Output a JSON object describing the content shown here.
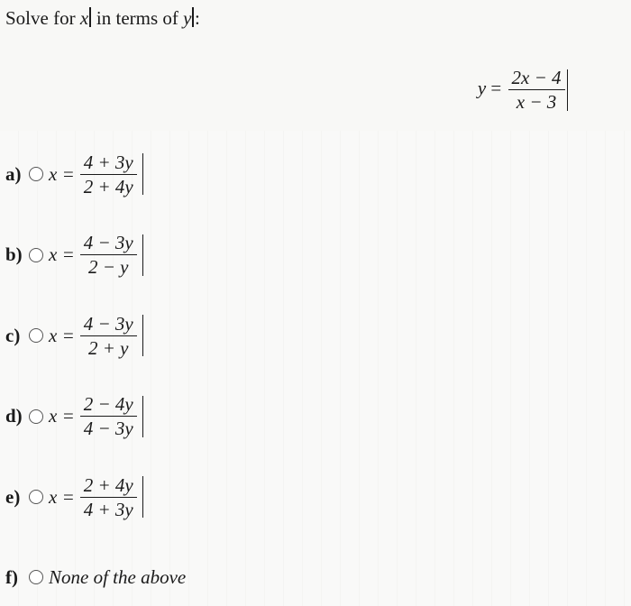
{
  "prompt": {
    "prefix": "Solve for ",
    "var_x": "x",
    "mid": " in terms of ",
    "var_y": "y",
    "suffix": ":"
  },
  "equation": {
    "lhs": "y",
    "eq": " = ",
    "num": "2x − 4",
    "den": "x − 3"
  },
  "options": {
    "a": {
      "letter": "a)",
      "lhs": "x =",
      "num": "4 + 3y",
      "den": "2 + 4y"
    },
    "b": {
      "letter": "b)",
      "lhs": "x =",
      "num": "4 − 3y",
      "den": "2 − y"
    },
    "c": {
      "letter": "c)",
      "lhs": "x =",
      "num": "4 − 3y",
      "den": "2 + y"
    },
    "d": {
      "letter": "d)",
      "lhs": "x =",
      "num": "2 − 4y",
      "den": "4 − 3y"
    },
    "e": {
      "letter": "e)",
      "lhs": "x =",
      "num": "2 + 4y",
      "den": "4 + 3y"
    },
    "f": {
      "letter": "f)",
      "text": "None of the above"
    }
  },
  "colors": {
    "text": "#1a1a1a",
    "background": "#f8f8f6",
    "radio_border": "#555555"
  },
  "typography": {
    "font_family": "Times New Roman",
    "base_fontsize_pt": 16
  }
}
